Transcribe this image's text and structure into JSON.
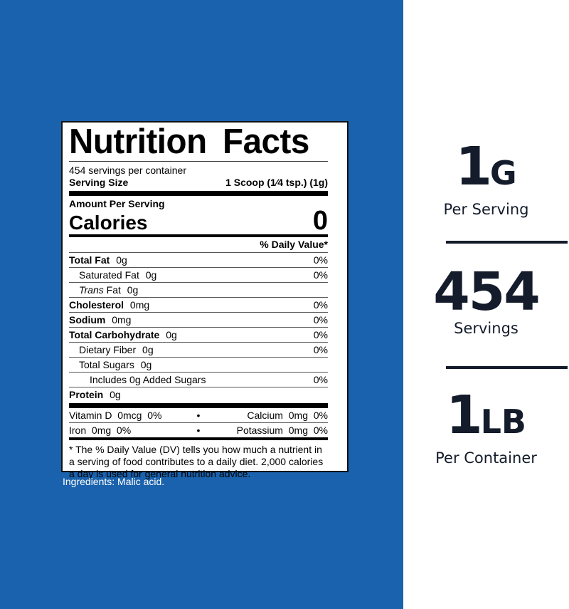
{
  "colors": {
    "background": "#1a62ad",
    "text_dark": "#141c2b"
  },
  "label": {
    "title": "Nutrition Facts",
    "servings_per_container": "454 servings per container",
    "serving_size_label": "Serving Size",
    "serving_size_value": "1 Scoop (1⁄4 tsp.) (1g)",
    "amount_per_serving": "Amount Per Serving",
    "calories_label": "Calories",
    "calories_value": "0",
    "daily_value_header": "% Daily Value*",
    "nutrients": [
      {
        "name": "Total Fat",
        "amount": "0g",
        "dv": "0%"
      },
      {
        "name": "Saturated Fat",
        "amount": "0g",
        "dv": "0%"
      },
      {
        "name": "Trans",
        "name_suffix": "Fat",
        "amount": "0g",
        "dv": ""
      },
      {
        "name": "Cholesterol",
        "amount": "0mg",
        "dv": "0%"
      },
      {
        "name": "Sodium",
        "amount": "0mg",
        "dv": "0%"
      },
      {
        "name": "Total Carbohydrate",
        "amount": "0g",
        "dv": "0%"
      },
      {
        "name": "Dietary Fiber",
        "amount": "0g",
        "dv": "0%"
      },
      {
        "name": "Total Sugars",
        "amount": "0g",
        "dv": ""
      },
      {
        "name": "Includes 0g Added Sugars",
        "amount": "",
        "dv": "0%"
      },
      {
        "name": "Protein",
        "amount": "0g",
        "dv": ""
      }
    ],
    "vitamins": [
      {
        "left": "Vitamin D  0mcg  0%",
        "right": "Calcium  0mg  0%"
      },
      {
        "left": "Iron  0mg  0%",
        "right": "Potassium  0mg  0%"
      }
    ],
    "bullet": "•",
    "footnote": "* The % Daily Value (DV) tells you how much a nutrient in a serving of food contributes to a daily diet. 2,000 calories a day is used for general nutrition advice."
  },
  "ingredients": "Ingredients: Malic acid.",
  "stats": [
    {
      "number": "1",
      "unit": "G",
      "caption": "Per Serving"
    },
    {
      "number": "454",
      "unit": "",
      "caption": "Servings"
    },
    {
      "number": "1",
      "unit": "LB",
      "caption": "Per Container"
    }
  ]
}
